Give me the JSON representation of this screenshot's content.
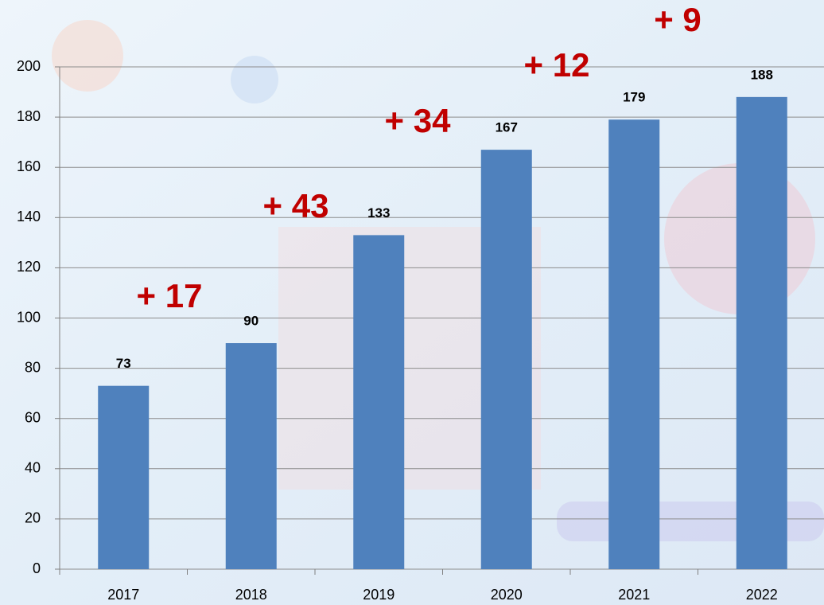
{
  "chart_data": {
    "type": "bar",
    "categories": [
      "2017",
      "2018",
      "2019",
      "2020",
      "2021",
      "2022"
    ],
    "values": [
      73,
      90,
      133,
      167,
      179,
      188
    ],
    "color": "#4f81bd",
    "ylim": [
      0,
      200
    ],
    "yticks": [
      0,
      20,
      40,
      60,
      80,
      100,
      120,
      140,
      160,
      180,
      200
    ],
    "grid": true,
    "annotations": [
      "+ 17",
      "+ 43",
      "+ 34",
      "+ 12",
      "+ 9"
    ]
  }
}
